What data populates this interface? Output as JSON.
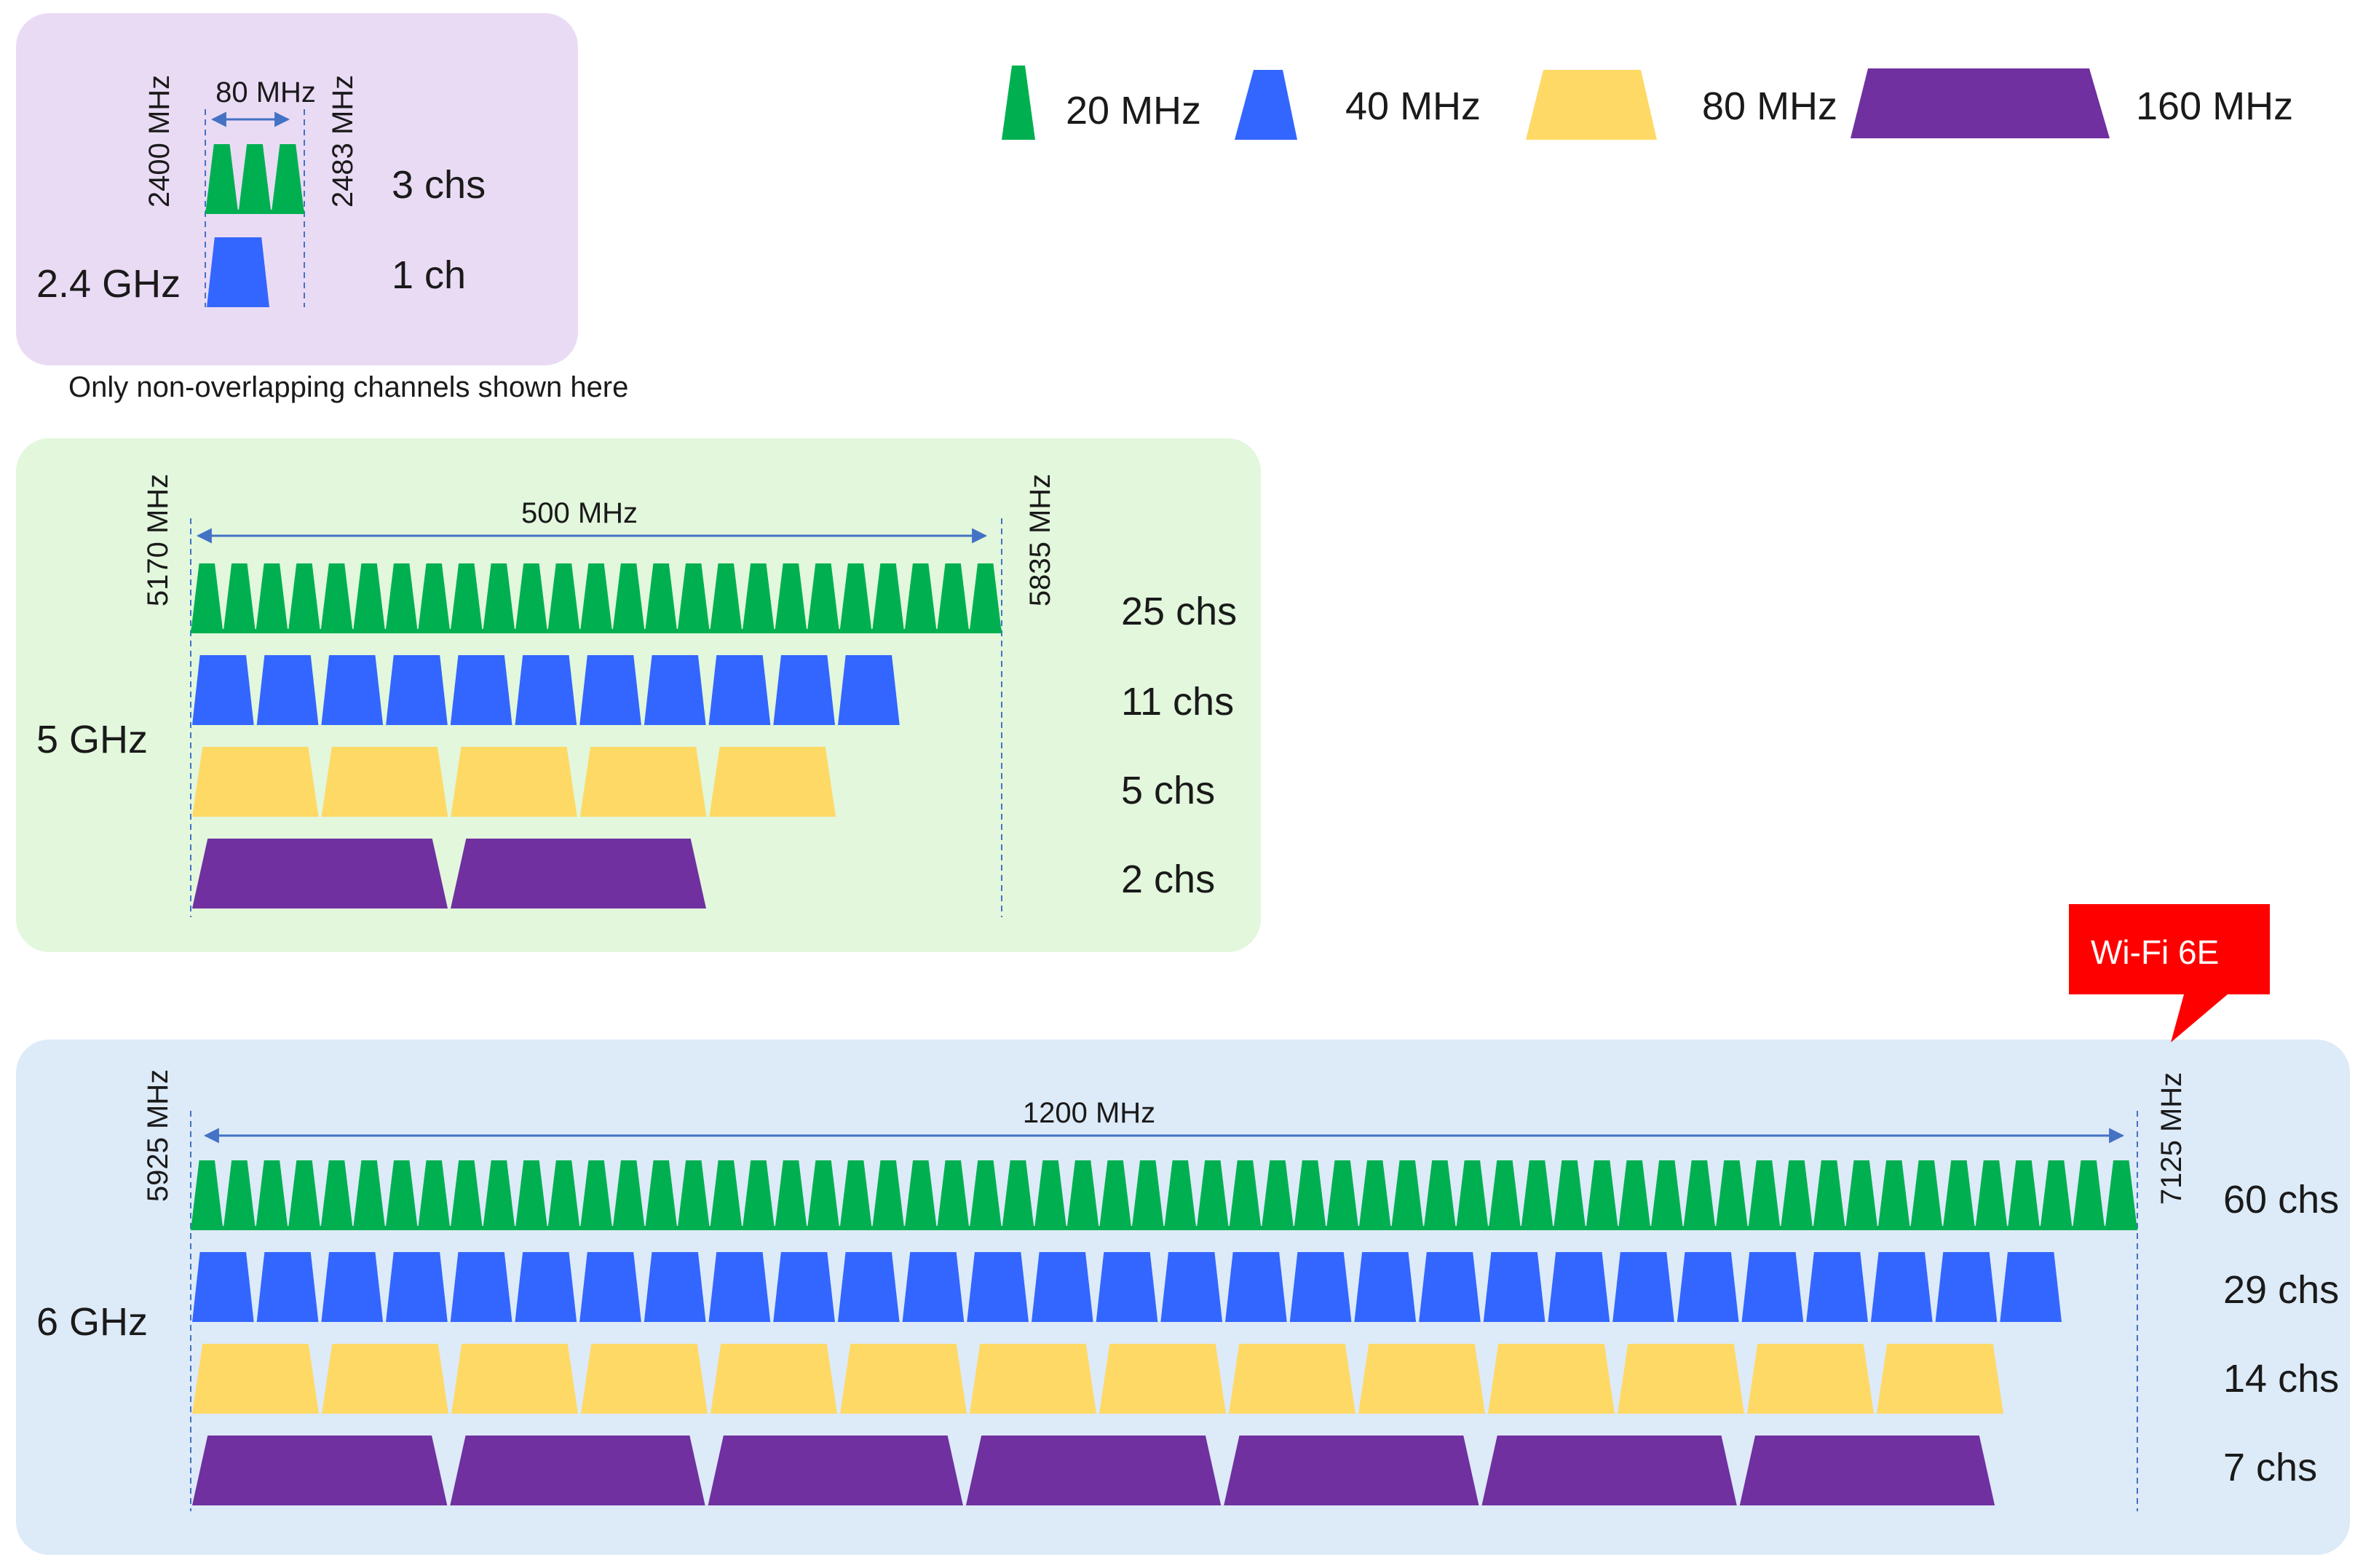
{
  "colors": {
    "w20": "#00B050",
    "w40": "#3366FF",
    "w80": "#FFD966",
    "w160": "#7030A0",
    "panel_24": "#EADBF5",
    "panel_5": "#E2F7DC",
    "panel_6": "#DDEAF8",
    "guide": "#4472C4",
    "badge": "#FF0000"
  },
  "legend": [
    {
      "width_key": "w20",
      "label": "20 MHz",
      "icon": "trapezoid-20-icon"
    },
    {
      "width_key": "w40",
      "label": "40 MHz",
      "icon": "trapezoid-40-icon"
    },
    {
      "width_key": "w80",
      "label": "80 MHz",
      "icon": "trapezoid-80-icon"
    },
    {
      "width_key": "w160",
      "label": "160 MHz",
      "icon": "trapezoid-160-icon"
    }
  ],
  "bands": [
    {
      "id": "band-24",
      "name": "2.4 GHz",
      "start_label": "2400 MHz",
      "end_label": "2483 MHz",
      "span_label": "80 MHz",
      "rows": [
        {
          "width_key": "w20",
          "channels": 3,
          "count_label": "3 chs"
        },
        {
          "width_key": "w40",
          "channels": 1,
          "count_label": "1 ch"
        }
      ],
      "note": "Only non-overlapping channels shown here"
    },
    {
      "id": "band-5",
      "name": "5 GHz",
      "start_label": "5170 MHz",
      "end_label": "5835 MHz",
      "span_label": "500 MHz",
      "rows": [
        {
          "width_key": "w20",
          "channels": 25,
          "count_label": "25 chs"
        },
        {
          "width_key": "w40",
          "channels": 11,
          "count_label": "11 chs"
        },
        {
          "width_key": "w80",
          "channels": 5,
          "count_label": "5 chs"
        },
        {
          "width_key": "w160",
          "channels": 2,
          "count_label": "2 chs"
        }
      ]
    },
    {
      "id": "band-6",
      "name": "6 GHz",
      "start_label": "5925 MHz",
      "end_label": "7125 MHz",
      "span_label": "1200 MHz",
      "badge": "Wi-Fi 6E",
      "rows": [
        {
          "width_key": "w20",
          "channels": 60,
          "count_label": "60 chs"
        },
        {
          "width_key": "w40",
          "channels": 29,
          "count_label": "29 chs"
        },
        {
          "width_key": "w80",
          "channels": 14,
          "count_label": "14 chs"
        },
        {
          "width_key": "w160",
          "channels": 7,
          "count_label": "7 chs"
        }
      ]
    }
  ]
}
